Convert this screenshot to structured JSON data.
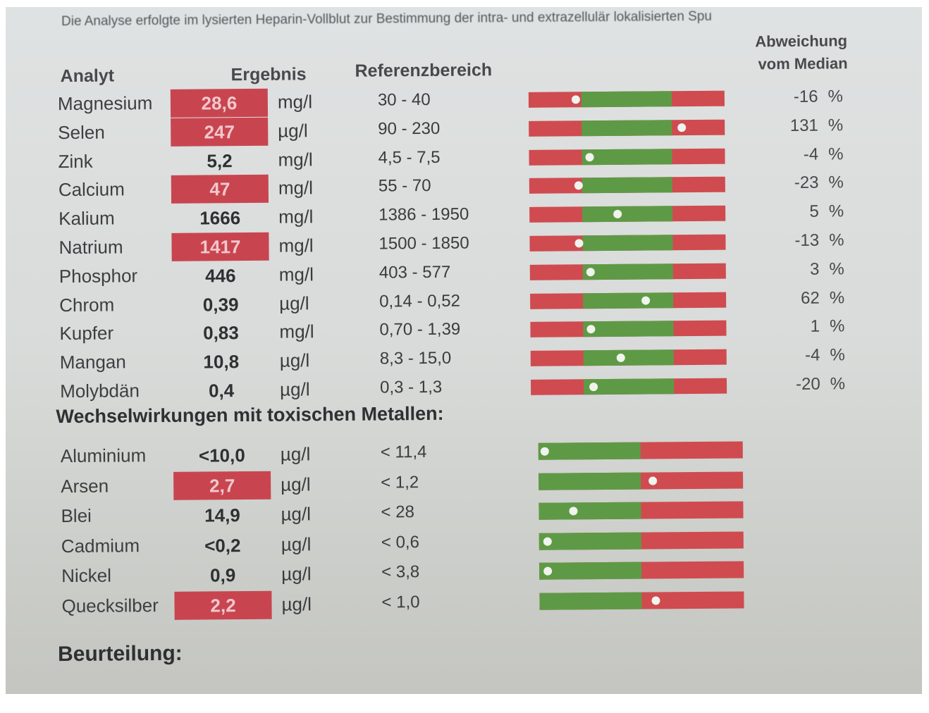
{
  "intro": "Die Analyse erfolgte im lysierten Heparin-Vollblut zur Bestimmung der intra- und extrazellulär lokalisierten Spu",
  "headers": {
    "analyt": "Analyt",
    "ergebnis": "Ergebnis",
    "referenz": "Referenzbereich",
    "abweichung_1": "Abweichung",
    "abweichung_2": "vom Median"
  },
  "colors": {
    "out_of_range": "#c84550",
    "normal": "#5e9a45",
    "high": "#cf4b4f"
  },
  "analytes": [
    {
      "name": "Magnesium",
      "result": "28,6",
      "flag": true,
      "unit": "mg/l",
      "ref": "30 - 40",
      "marker": 0.24,
      "deviation": "-16",
      "pct": "%"
    },
    {
      "name": "Selen",
      "result": "247",
      "flag": true,
      "unit": "µg/l",
      "ref": "90 - 230",
      "marker": 0.78,
      "deviation": "131",
      "pct": "%"
    },
    {
      "name": "Zink",
      "result": "5,2",
      "flag": false,
      "unit": "mg/l",
      "ref": "4,5 - 7,5",
      "marker": 0.31,
      "deviation": "-4",
      "pct": "%"
    },
    {
      "name": "Calcium",
      "result": "47",
      "flag": true,
      "unit": "mg/l",
      "ref": "55 - 70",
      "marker": 0.25,
      "deviation": "-23",
      "pct": "%"
    },
    {
      "name": "Kalium",
      "result": "1666",
      "flag": false,
      "unit": "mg/l",
      "ref": "1386 - 1950",
      "marker": 0.45,
      "deviation": "5",
      "pct": "%"
    },
    {
      "name": "Natrium",
      "result": "1417",
      "flag": true,
      "unit": "mg/l",
      "ref": "1500 - 1850",
      "marker": 0.25,
      "deviation": "-13",
      "pct": "%"
    },
    {
      "name": "Phosphor",
      "result": "446",
      "flag": false,
      "unit": "mg/l",
      "ref": "403 - 577",
      "marker": 0.31,
      "deviation": "3",
      "pct": "%"
    },
    {
      "name": "Chrom",
      "result": "0,39",
      "flag": false,
      "unit": "µg/l",
      "ref": "0,14 - 0,52",
      "marker": 0.59,
      "deviation": "62",
      "pct": "%"
    },
    {
      "name": "Kupfer",
      "result": "0,83",
      "flag": false,
      "unit": "mg/l",
      "ref": "0,70 - 1,39",
      "marker": 0.31,
      "deviation": "1",
      "pct": "%"
    },
    {
      "name": "Mangan",
      "result": "10,8",
      "flag": false,
      "unit": "µg/l",
      "ref": "8,3 - 15,0",
      "marker": 0.46,
      "deviation": "-4",
      "pct": "%"
    },
    {
      "name": "Molybdän",
      "result": "0,4",
      "flag": false,
      "unit": "µg/l",
      "ref": "0,3 - 1,3",
      "marker": 0.32,
      "deviation": "-20",
      "pct": "%"
    }
  ],
  "toxic_title": "Wechselwirkungen mit toxischen Metallen:",
  "toxic": [
    {
      "name": "Aluminium",
      "result": "<10,0",
      "flag": false,
      "unit": "µg/l",
      "ref": "< 11,4",
      "marker": 0.03
    },
    {
      "name": "Arsen",
      "result": "2,7",
      "flag": true,
      "unit": "µg/l",
      "ref": "< 1,2",
      "marker": 0.56
    },
    {
      "name": "Blei",
      "result": "14,9",
      "flag": false,
      "unit": "µg/l",
      "ref": "< 28",
      "marker": 0.17
    },
    {
      "name": "Cadmium",
      "result": "<0,2",
      "flag": false,
      "unit": "µg/l",
      "ref": "< 0,6",
      "marker": 0.04
    },
    {
      "name": "Nickel",
      "result": "0,9",
      "flag": false,
      "unit": "µg/l",
      "ref": "< 3,8",
      "marker": 0.04
    },
    {
      "name": "Quecksilber",
      "result": "2,2",
      "flag": true,
      "unit": "µg/l",
      "ref": "< 1,0",
      "marker": 0.57
    }
  ],
  "assessment_title": "Beurteilung:"
}
